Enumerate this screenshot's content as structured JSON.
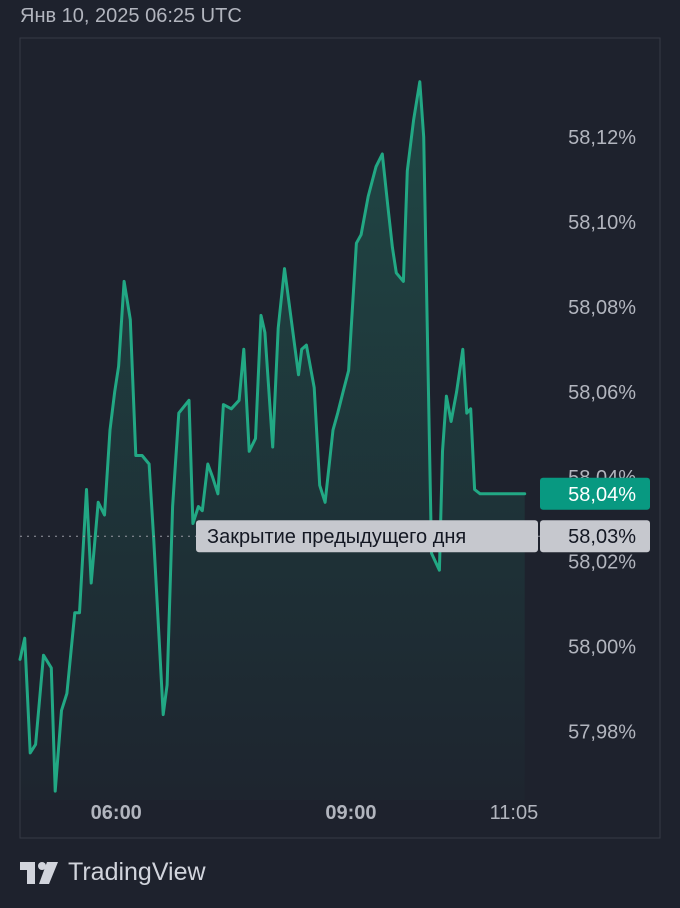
{
  "header": {
    "datetime": "Янв 10, 2025 06:25 UTC"
  },
  "colors": {
    "background": "#1e222d",
    "line": "#22a884",
    "last_price_badge": "#089981",
    "prev_close_badge": "#c6c8ce",
    "frame": "#363a45",
    "axis_text": "#b2b5be"
  },
  "chart_data": {
    "type": "area",
    "x_unit": "hours UTC",
    "y_unit": "%",
    "xlim": [
      4.77,
      11.25
    ],
    "ylim": [
      57.9639,
      58.1433
    ],
    "x_tick_labels": [
      {
        "x": 6.0,
        "label": "06:00"
      },
      {
        "x": 9.0,
        "label": "09:00"
      },
      {
        "x": 11.083,
        "label": "11:05"
      }
    ],
    "y_tick_labels": [
      {
        "value": 57.98,
        "label": "57,98%"
      },
      {
        "value": 58.0,
        "label": "58,00%"
      },
      {
        "value": 58.02,
        "label": "58,02%"
      },
      {
        "value": 58.04,
        "label": "58,04%"
      },
      {
        "value": 58.06,
        "label": "58,06%"
      },
      {
        "value": 58.08,
        "label": "58,08%"
      },
      {
        "value": 58.1,
        "label": "58,10%"
      },
      {
        "value": 58.12,
        "label": "58,12%"
      }
    ],
    "last_value": {
      "value": 58.036,
      "label": "58,04%"
    },
    "previous_close": {
      "value": 58.026,
      "label": "58,03%",
      "text": "Закрытие предыдущего дня"
    },
    "grid": false,
    "x": [
      4.77,
      4.83,
      4.9,
      4.97,
      5.07,
      5.17,
      5.22,
      5.3,
      5.37,
      5.47,
      5.53,
      5.62,
      5.68,
      5.77,
      5.85,
      5.92,
      5.98,
      6.03,
      6.1,
      6.18,
      6.25,
      6.33,
      6.42,
      6.48,
      6.6,
      6.65,
      6.72,
      6.8,
      6.93,
      6.98,
      7.05,
      7.1,
      7.17,
      7.23,
      7.3,
      7.37,
      7.47,
      7.57,
      7.63,
      7.7,
      7.78,
      7.85,
      7.9,
      8.0,
      8.07,
      8.15,
      8.23,
      8.33,
      8.37,
      8.43,
      8.53,
      8.6,
      8.67,
      8.77,
      8.83,
      8.9,
      8.97,
      9.07,
      9.13,
      9.22,
      9.32,
      9.4,
      9.47,
      9.53,
      9.58,
      9.67,
      9.72,
      9.8,
      9.88,
      9.93,
      10.03,
      10.13,
      10.17,
      10.22,
      10.28,
      10.35,
      10.43,
      10.48,
      10.53,
      10.58,
      10.65,
      10.72,
      10.78,
      10.85,
      10.92,
      11.0,
      11.05,
      11.1,
      11.15,
      11.22
    ],
    "y": [
      57.997,
      58.002,
      57.975,
      57.977,
      57.998,
      57.995,
      57.966,
      57.985,
      57.989,
      58.008,
      58.008,
      58.037,
      58.015,
      58.034,
      58.031,
      58.051,
      58.06,
      58.066,
      58.086,
      58.077,
      58.045,
      58.045,
      58.043,
      58.025,
      57.984,
      57.991,
      58.033,
      58.055,
      58.058,
      58.029,
      58.033,
      58.032,
      58.043,
      58.04,
      58.036,
      58.057,
      58.056,
      58.058,
      58.07,
      58.046,
      58.049,
      58.078,
      58.074,
      58.047,
      58.075,
      58.089,
      58.078,
      58.064,
      58.07,
      58.071,
      58.061,
      58.038,
      58.034,
      58.051,
      58.055,
      58.06,
      58.065,
      58.095,
      58.097,
      58.106,
      58.113,
      58.116,
      58.104,
      58.094,
      58.088,
      58.086,
      58.112,
      58.124,
      58.133,
      58.12,
      58.022,
      58.018,
      58.046,
      58.059,
      58.053,
      58.06,
      58.07,
      58.055,
      58.056,
      58.037,
      58.036,
      58.036,
      58.036,
      58.036,
      58.036,
      58.036,
      58.036,
      58.036,
      58.036,
      58.036
    ]
  },
  "footer": {
    "brand": "TradingView",
    "logo": "tradingview-logo-icon"
  }
}
